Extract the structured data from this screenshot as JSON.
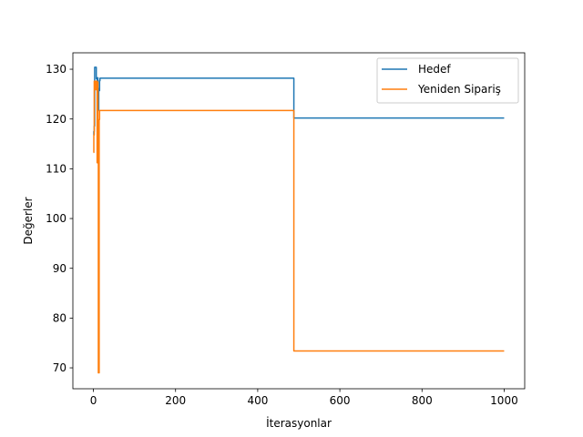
{
  "chart_data": {
    "type": "line",
    "title": "",
    "xlabel": "İterasyonlar",
    "ylabel": "Değerler",
    "xlim": [
      -50,
      1050
    ],
    "ylim": [
      65.8,
      133.3
    ],
    "xticks": [
      0,
      200,
      400,
      600,
      800,
      1000
    ],
    "yticks": [
      70,
      80,
      90,
      100,
      110,
      120,
      130
    ],
    "grid": false,
    "legend_position": "top-right",
    "series": [
      {
        "name": "Hedef",
        "color": "#1f77b4",
        "x": [
          0,
          1,
          1,
          2,
          2,
          3,
          3,
          4,
          4,
          5,
          5,
          6,
          6,
          7,
          7,
          8,
          8,
          9,
          9,
          10,
          10,
          11,
          11,
          12,
          12,
          13,
          13,
          14,
          14,
          15,
          15,
          16,
          16,
          17,
          17,
          18,
          18,
          488,
          488,
          1000
        ],
        "y": [
          116.8,
          116.8,
          117.5,
          117.5,
          118.6,
          118.6,
          130.4,
          130.4,
          130.4,
          130.4,
          130.4,
          130.4,
          130.4,
          130.4,
          128.1,
          128.1,
          128.1,
          128.1,
          127.5,
          127.5,
          128.3,
          128.3,
          121.7,
          121.7,
          121.7,
          121.7,
          126.1,
          126.1,
          125.7,
          125.7,
          127.7,
          127.7,
          128.2,
          128.2,
          128.2,
          128.2,
          128.2,
          128.2,
          120.2,
          120.2
        ]
      },
      {
        "name": "Yeniden Sipariş",
        "color": "#ff7f0e",
        "x": [
          0,
          1,
          1,
          2,
          2,
          3,
          3,
          4,
          4,
          5,
          5,
          6,
          6,
          7,
          7,
          8,
          8,
          9,
          9,
          10,
          10,
          11,
          11,
          12,
          12,
          13,
          13,
          14,
          14,
          15,
          15,
          16,
          16,
          17,
          17,
          488,
          488,
          1000
        ],
        "y": [
          113.3,
          113.3,
          116.8,
          116.8,
          127.6,
          127.6,
          127.6,
          127.6,
          126.8,
          126.8,
          125.9,
          125.9,
          125.9,
          125.9,
          127.6,
          127.6,
          127.6,
          127.6,
          111.2,
          111.2,
          127.4,
          127.4,
          116.3,
          116.3,
          69.0,
          69.0,
          69.0,
          69.0,
          119.9,
          119.9,
          121.7,
          121.7,
          121.7,
          121.7,
          121.7,
          121.7,
          73.4,
          73.4
        ]
      }
    ]
  }
}
